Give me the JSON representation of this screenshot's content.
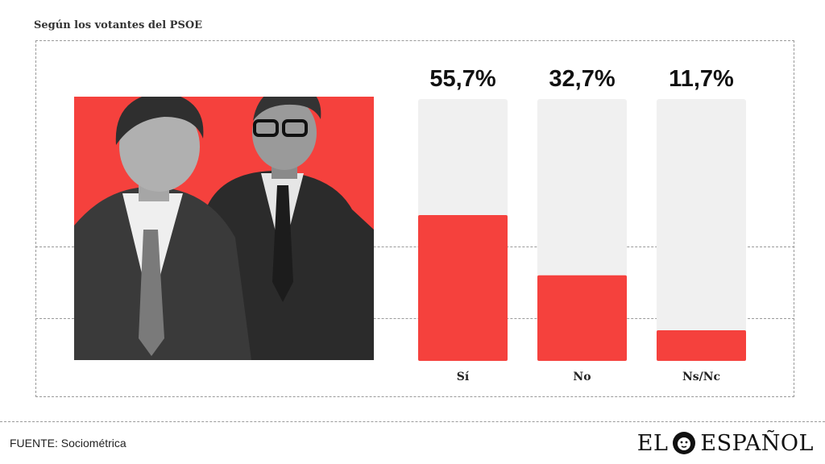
{
  "subtitle": "Según los votantes del PSOE",
  "source": "FUENTE: Sociométrica",
  "logo": {
    "part1": "EL",
    "part2": "ESPAÑOL",
    "icon": "lion-head-icon"
  },
  "colors": {
    "accent": "#f5413d",
    "track": "#f0f0f0",
    "text": "#111111"
  },
  "chart_data": {
    "type": "bar",
    "categories": [
      "Sí",
      "No",
      "Ns/Nc"
    ],
    "values": [
      55.7,
      32.7,
      11.7
    ],
    "value_labels": [
      "55,7%",
      "32,7%",
      "11,7%"
    ],
    "ylim": [
      0,
      100
    ],
    "grid": false
  }
}
